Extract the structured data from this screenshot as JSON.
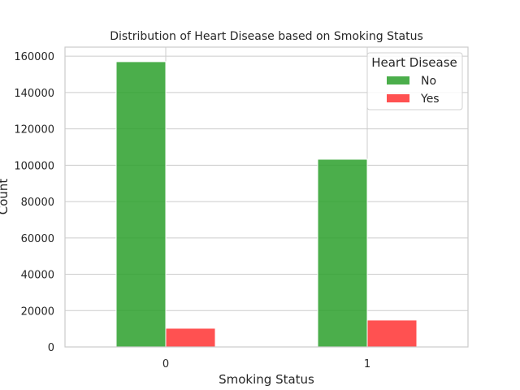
{
  "chart_data": {
    "type": "bar",
    "title": "Distribution of Heart Disease based on Smoking Status",
    "xlabel": "Smoking Status",
    "ylabel": "Count",
    "categories": [
      "0",
      "1"
    ],
    "series": [
      {
        "name": "No",
        "color": "#2ca02c",
        "values": [
          157000,
          103300
        ]
      },
      {
        "name": "Yes",
        "color": "#ff3333",
        "values": [
          10300,
          14800
        ]
      }
    ],
    "ylim": [
      0,
      165000
    ],
    "yticks": [
      0,
      20000,
      40000,
      60000,
      80000,
      100000,
      120000,
      140000,
      160000
    ],
    "ytick_labels": [
      "0",
      "20000",
      "40000",
      "60000",
      "80000",
      "100000",
      "120000",
      "140000",
      "160000"
    ],
    "grid": true,
    "legend": {
      "title": "Heart Disease",
      "position": "top-right"
    }
  }
}
